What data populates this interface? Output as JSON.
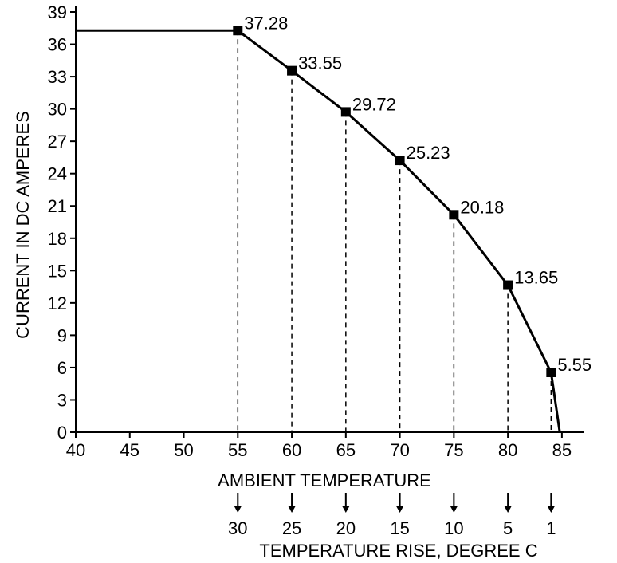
{
  "chart_data": {
    "type": "line",
    "xlabel": "AMBIENT TEMPERATURE",
    "ylabel": "CURRENT IN DC AMPERES",
    "secondary_xlabel": "TEMPERATURE RISE, DEGREE C",
    "xlim": [
      40,
      87
    ],
    "ylim": [
      0,
      40
    ],
    "x_ticks": [
      40,
      45,
      50,
      55,
      60,
      65,
      70,
      75,
      80,
      85
    ],
    "y_ticks": [
      0,
      3,
      6,
      9,
      12,
      15,
      18,
      21,
      24,
      27,
      30,
      33,
      36,
      39
    ],
    "series": [
      {
        "points": [
          {
            "x": 40,
            "y": 37.28
          },
          {
            "x": 55,
            "y": 37.28
          },
          {
            "x": 60,
            "y": 33.55
          },
          {
            "x": 65,
            "y": 29.72
          },
          {
            "x": 70,
            "y": 25.23
          },
          {
            "x": 75,
            "y": 20.18
          },
          {
            "x": 80,
            "y": 13.65
          },
          {
            "x": 84,
            "y": 5.55
          },
          {
            "x": 84.8,
            "y": 0
          }
        ]
      }
    ],
    "markers": [
      {
        "x": 55,
        "y": 37.28,
        "label": "37.28"
      },
      {
        "x": 60,
        "y": 33.55,
        "label": "33.55"
      },
      {
        "x": 65,
        "y": 29.72,
        "label": "29.72"
      },
      {
        "x": 70,
        "y": 25.23,
        "label": "25.23"
      },
      {
        "x": 75,
        "y": 20.18,
        "label": "20.18"
      },
      {
        "x": 80,
        "y": 13.65,
        "label": "13.65"
      },
      {
        "x": 84,
        "y": 5.55,
        "label": "5.55"
      }
    ],
    "temperature_rise": [
      {
        "x": 55,
        "label": "30"
      },
      {
        "x": 60,
        "label": "25"
      },
      {
        "x": 65,
        "label": "20"
      },
      {
        "x": 70,
        "label": "15"
      },
      {
        "x": 75,
        "label": "10"
      },
      {
        "x": 80,
        "label": "5"
      },
      {
        "x": 84,
        "label": "1"
      }
    ],
    "grid": false,
    "legend": "none",
    "line_color": "#000000"
  }
}
